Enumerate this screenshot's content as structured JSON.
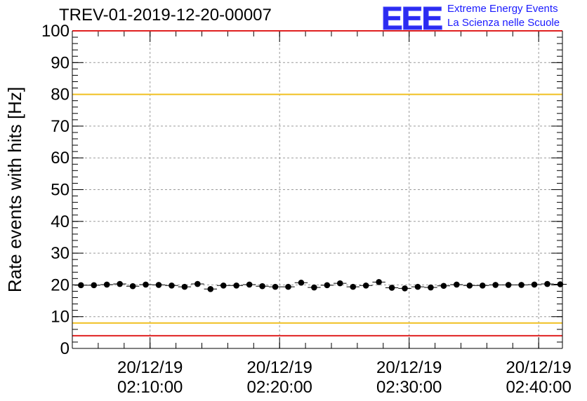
{
  "title": "TREV-01-2019-12-20-00007",
  "logo": {
    "mark": "EEE",
    "line1": "Extreme Energy Events",
    "line2": "La Scienza nelle Scuole"
  },
  "chart_data": {
    "type": "scatter",
    "title": "TREV-01-2019-12-20-00007",
    "ylabel": "Rate events with hits [Hz]",
    "xlabel": "",
    "ylim": [
      0,
      100
    ],
    "yticks": [
      0,
      10,
      20,
      30,
      40,
      50,
      60,
      70,
      80,
      90,
      100
    ],
    "xlim": [
      "20/12/19 02:04:00",
      "20/12/19 02:41:50"
    ],
    "xticks": [
      {
        "date": "20/12/19",
        "time": "02:10:00"
      },
      {
        "date": "20/12/19",
        "time": "02:20:00"
      },
      {
        "date": "20/12/19",
        "time": "02:30:00"
      },
      {
        "date": "20/12/19",
        "time": "02:40:00"
      }
    ],
    "grid": true,
    "reference_lines": [
      {
        "y": 100,
        "color": "#e02020"
      },
      {
        "y": 80,
        "color": "#f0c020"
      },
      {
        "y": 8,
        "color": "#f0c020"
      },
      {
        "y": 4,
        "color": "#e02020"
      }
    ],
    "series": [
      {
        "marker_color": "#000000",
        "x": [
          "02:04:40",
          "02:05:40",
          "02:06:40",
          "02:07:40",
          "02:08:40",
          "02:09:40",
          "02:10:40",
          "02:11:40",
          "02:12:40",
          "02:13:40",
          "02:14:40",
          "02:15:40",
          "02:16:40",
          "02:17:40",
          "02:18:40",
          "02:19:40",
          "02:20:40",
          "02:21:40",
          "02:22:40",
          "02:23:40",
          "02:24:40",
          "02:25:40",
          "02:26:40",
          "02:27:40",
          "02:28:40",
          "02:29:40",
          "02:30:40",
          "02:31:40",
          "02:32:40",
          "02:33:40",
          "02:34:40",
          "02:35:40",
          "02:36:40",
          "02:37:40",
          "02:38:40",
          "02:39:40",
          "02:40:40",
          "02:41:40"
        ],
        "y": [
          19.9,
          19.9,
          20.1,
          20.3,
          19.6,
          20.1,
          20.0,
          19.8,
          19.4,
          20.3,
          18.7,
          19.8,
          19.8,
          20.1,
          19.6,
          19.4,
          19.4,
          20.7,
          19.2,
          19.9,
          20.5,
          19.4,
          19.8,
          20.9,
          19.1,
          18.9,
          19.4,
          19.2,
          19.7,
          20.1,
          19.8,
          19.8,
          20.0,
          20.0,
          20.0,
          20.1,
          20.3,
          20.2
        ]
      }
    ]
  }
}
